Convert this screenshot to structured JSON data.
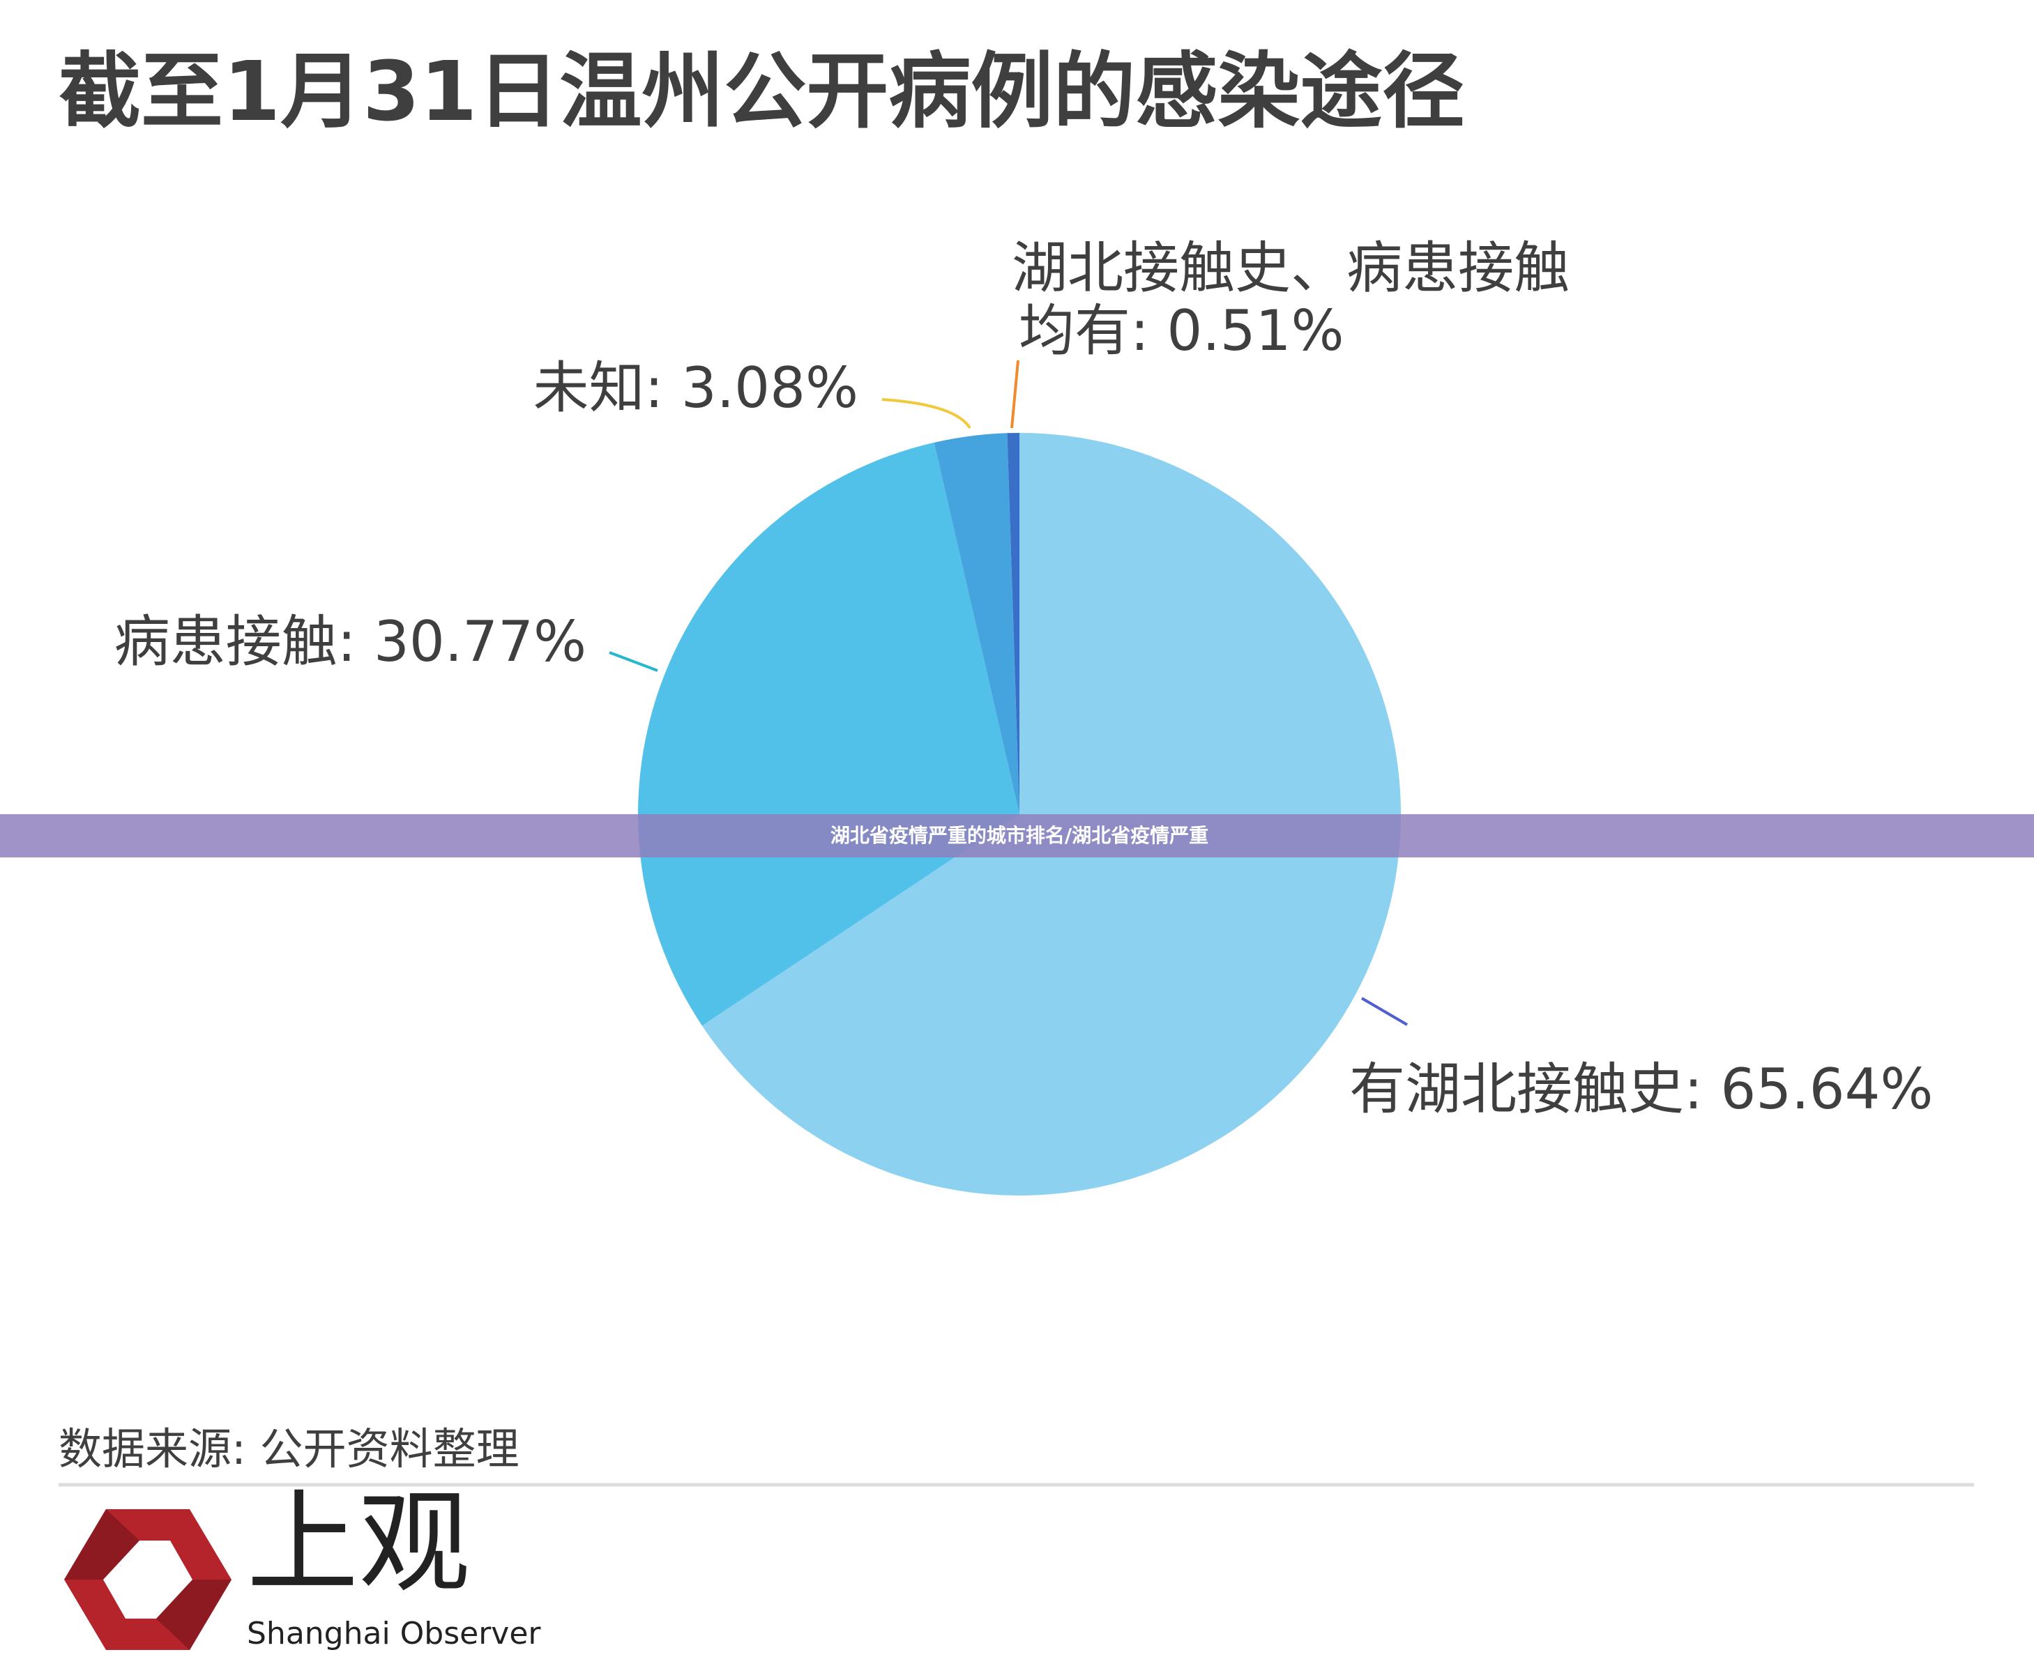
{
  "chart_data": {
    "type": "pie",
    "title": "截至1月31日温州公开病例的感染途径",
    "values": [
      65.64,
      30.77,
      3.08,
      0.51
    ],
    "value_labels": [
      [
        "有湖北接触史: 65.64%"
      ],
      [
        "病患接触: 30.77%"
      ],
      [
        "未知: 3.08%"
      ],
      [
        "湖北接触史、病患接触",
        "均有: 0.51%"
      ]
    ],
    "colors": [
      "#8dd1f1",
      "#52c1e9",
      "#45a4dd",
      "#3a6fc8"
    ],
    "label_line_colors": [
      "#4e5fd0",
      "#27b6cf",
      "#f2c83a",
      "#f08a2a"
    ],
    "source": "数据来源: 公开资料整理"
  },
  "banner": "湖北省疫情严重的城市排名/湖北省疫情严重",
  "logo": {
    "name": "上观",
    "subtitle": "Shanghai Observer"
  }
}
